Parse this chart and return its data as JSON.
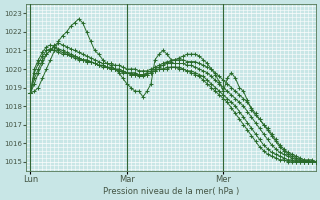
{
  "background_color": "#c8e6e6",
  "grid_color": "#ffffff",
  "line_color": "#2a6b2a",
  "marker_color": "#2a6b2a",
  "ylabel_ticks": [
    1015,
    1016,
    1017,
    1018,
    1019,
    1020,
    1021,
    1022,
    1023
  ],
  "ylim": [
    1014.5,
    1023.5
  ],
  "xlabel": "Pression niveau de la mer( hPa )",
  "day_labels": [
    "Lun",
    "Mar",
    "Mer"
  ],
  "day_positions": [
    0,
    24,
    48
  ],
  "n_points": 72,
  "series": [
    [
      1018.7,
      1018.8,
      1019.0,
      1019.5,
      1020.0,
      1020.5,
      1021.0,
      1021.5,
      1021.8,
      1022.0,
      1022.3,
      1022.5,
      1022.7,
      1022.5,
      1022.0,
      1021.5,
      1021.0,
      1020.8,
      1020.5,
      1020.3,
      1020.2,
      1020.0,
      1019.8,
      1019.5,
      1019.2,
      1019.0,
      1018.8,
      1018.8,
      1018.5,
      1018.8,
      1019.2,
      1020.5,
      1020.8,
      1021.0,
      1020.8,
      1020.5,
      1020.5,
      1020.6,
      1020.7,
      1020.8,
      1020.8,
      1020.8,
      1020.7,
      1020.5,
      1020.3,
      1020.0,
      1019.7,
      1019.3,
      1018.8,
      1019.5,
      1019.8,
      1019.5,
      1019.0,
      1018.8,
      1018.3,
      1017.8,
      1017.5,
      1017.3,
      1017.0,
      1016.8,
      1016.5,
      1016.2,
      1015.9,
      1015.7,
      1015.5,
      1015.4,
      1015.3,
      1015.2,
      1015.1,
      1015.1,
      1015.1,
      1015.0
    ],
    [
      1018.7,
      1019.2,
      1019.8,
      1020.3,
      1020.8,
      1021.0,
      1021.3,
      1021.4,
      1021.3,
      1021.2,
      1021.1,
      1021.0,
      1020.9,
      1020.8,
      1020.7,
      1020.6,
      1020.5,
      1020.4,
      1020.3,
      1020.3,
      1020.3,
      1020.2,
      1020.2,
      1020.1,
      1020.0,
      1020.0,
      1020.0,
      1019.9,
      1019.9,
      1019.9,
      1020.0,
      1020.1,
      1020.2,
      1020.3,
      1020.4,
      1020.4,
      1020.5,
      1020.5,
      1020.5,
      1020.4,
      1020.4,
      1020.4,
      1020.3,
      1020.2,
      1020.1,
      1020.0,
      1019.8,
      1019.6,
      1019.4,
      1019.2,
      1019.0,
      1018.8,
      1018.6,
      1018.4,
      1018.2,
      1017.9,
      1017.6,
      1017.3,
      1017.0,
      1016.7,
      1016.4,
      1016.1,
      1015.8,
      1015.6,
      1015.4,
      1015.3,
      1015.2,
      1015.1,
      1015.1,
      1015.0,
      1015.0,
      1015.0
    ],
    [
      1018.7,
      1019.5,
      1020.0,
      1020.5,
      1020.8,
      1021.0,
      1021.2,
      1021.1,
      1021.0,
      1020.9,
      1020.8,
      1020.7,
      1020.6,
      1020.5,
      1020.5,
      1020.4,
      1020.3,
      1020.2,
      1020.2,
      1020.1,
      1020.1,
      1020.0,
      1020.0,
      1019.9,
      1019.8,
      1019.8,
      1019.8,
      1019.7,
      1019.7,
      1019.8,
      1019.9,
      1020.0,
      1020.1,
      1020.2,
      1020.3,
      1020.3,
      1020.3,
      1020.3,
      1020.3,
      1020.2,
      1020.2,
      1020.1,
      1020.0,
      1019.9,
      1019.8,
      1019.6,
      1019.4,
      1019.2,
      1019.0,
      1018.8,
      1018.6,
      1018.4,
      1018.2,
      1018.0,
      1017.7,
      1017.4,
      1017.1,
      1016.8,
      1016.5,
      1016.2,
      1015.9,
      1015.7,
      1015.5,
      1015.4,
      1015.3,
      1015.2,
      1015.1,
      1015.1,
      1015.0,
      1015.0,
      1015.0,
      1015.0
    ],
    [
      1018.7,
      1019.8,
      1020.3,
      1020.7,
      1021.0,
      1021.1,
      1021.0,
      1020.9,
      1020.8,
      1020.8,
      1020.7,
      1020.6,
      1020.5,
      1020.5,
      1020.4,
      1020.4,
      1020.3,
      1020.2,
      1020.2,
      1020.1,
      1020.0,
      1020.0,
      1019.9,
      1019.9,
      1019.8,
      1019.7,
      1019.7,
      1019.7,
      1019.7,
      1019.7,
      1019.8,
      1019.9,
      1020.0,
      1020.0,
      1020.1,
      1020.1,
      1020.1,
      1020.1,
      1020.0,
      1019.9,
      1019.9,
      1019.8,
      1019.7,
      1019.6,
      1019.4,
      1019.2,
      1019.0,
      1018.8,
      1018.6,
      1018.4,
      1018.2,
      1018.0,
      1017.7,
      1017.4,
      1017.1,
      1016.8,
      1016.5,
      1016.2,
      1015.9,
      1015.7,
      1015.5,
      1015.4,
      1015.3,
      1015.2,
      1015.1,
      1015.1,
      1015.0,
      1015.0,
      1015.0,
      1015.0,
      1015.0,
      1015.0
    ],
    [
      1018.7,
      1020.0,
      1020.5,
      1020.9,
      1021.2,
      1021.3,
      1021.2,
      1021.0,
      1020.9,
      1020.8,
      1020.7,
      1020.7,
      1020.6,
      1020.5,
      1020.4,
      1020.4,
      1020.3,
      1020.2,
      1020.1,
      1020.1,
      1020.0,
      1020.0,
      1019.9,
      1019.8,
      1019.8,
      1019.7,
      1019.7,
      1019.6,
      1019.6,
      1019.7,
      1019.8,
      1019.9,
      1020.0,
      1020.0,
      1020.0,
      1020.1,
      1020.1,
      1020.0,
      1020.0,
      1019.9,
      1019.8,
      1019.7,
      1019.6,
      1019.4,
      1019.2,
      1019.0,
      1018.8,
      1018.6,
      1018.4,
      1018.2,
      1017.9,
      1017.6,
      1017.3,
      1017.0,
      1016.7,
      1016.4,
      1016.1,
      1015.8,
      1015.6,
      1015.4,
      1015.3,
      1015.2,
      1015.1,
      1015.1,
      1015.0,
      1015.0,
      1015.0,
      1015.0,
      1015.0,
      1015.0,
      1015.0,
      1015.0
    ]
  ]
}
